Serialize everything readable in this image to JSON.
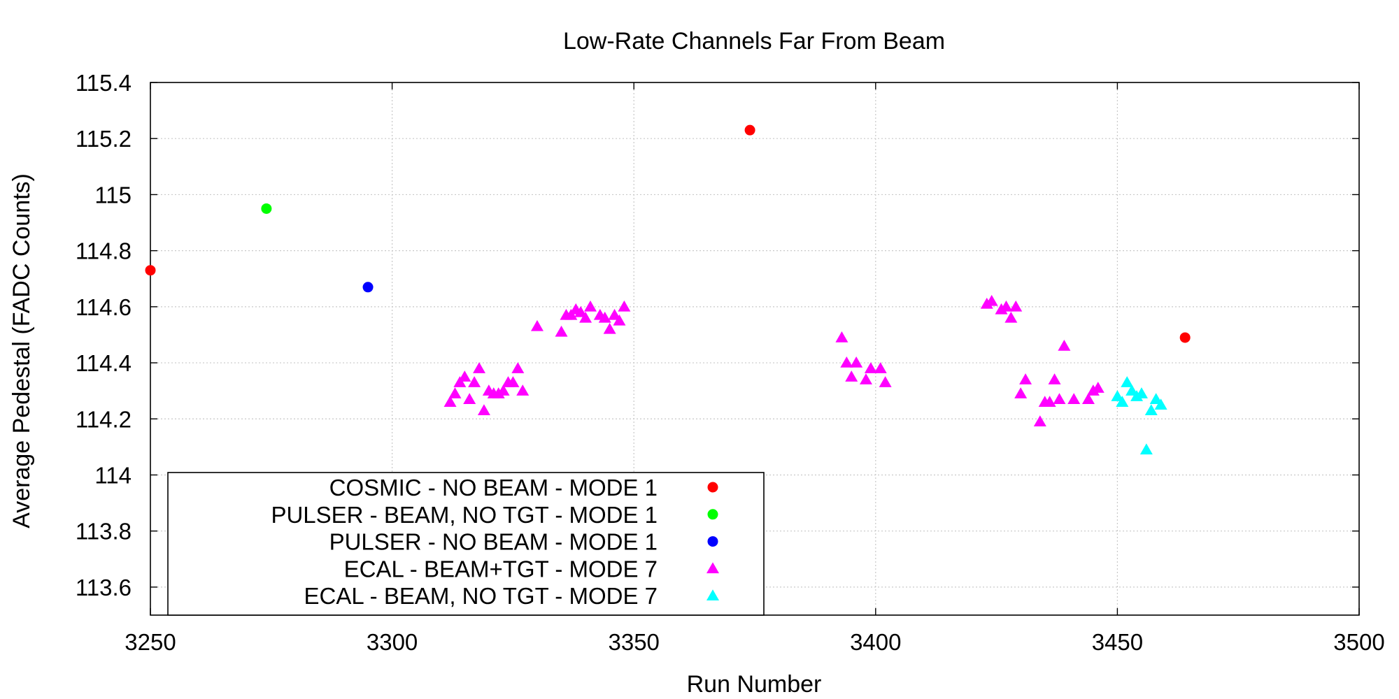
{
  "chart_data": {
    "type": "scatter",
    "title": "Low-Rate Channels Far From Beam",
    "xlabel": "Run Number",
    "ylabel": "Average Pedestal (FADC Counts)",
    "xlim": [
      3250,
      3500
    ],
    "ylim": [
      113.5,
      115.4
    ],
    "xticks": [
      3250,
      3300,
      3350,
      3400,
      3450,
      3500
    ],
    "yticks": [
      113.6,
      113.8,
      114,
      114.2,
      114.4,
      114.6,
      114.8,
      115,
      115.2,
      115.4
    ],
    "xtick_labels": [
      "3250",
      "3300",
      "3350",
      "3400",
      "3450",
      "3500"
    ],
    "ytick_labels": [
      "113.6",
      "113.8",
      "114",
      "114.2",
      "114.4",
      "114.6",
      "114.8",
      "115",
      "115.2",
      "115.4"
    ],
    "grid": true,
    "legend_position": "bottom-left",
    "series": [
      {
        "name": "COSMIC - NO BEAM - MODE 1",
        "marker": "circle",
        "color": "#ff0000",
        "points": [
          [
            3250,
            114.73
          ],
          [
            3374,
            115.23
          ],
          [
            3464,
            114.49
          ]
        ]
      },
      {
        "name": "PULSER - BEAM, NO TGT - MODE 1",
        "marker": "circle",
        "color": "#00ff00",
        "points": [
          [
            3274,
            114.95
          ]
        ]
      },
      {
        "name": "PULSER - NO BEAM - MODE 1",
        "marker": "circle",
        "color": "#0000ff",
        "points": [
          [
            3295,
            114.67
          ]
        ]
      },
      {
        "name": "ECAL - BEAM+TGT - MODE 7",
        "marker": "triangle",
        "color": "#ff00ff",
        "points": [
          [
            3312,
            114.26
          ],
          [
            3313,
            114.29
          ],
          [
            3314,
            114.33
          ],
          [
            3315,
            114.35
          ],
          [
            3316,
            114.27
          ],
          [
            3317,
            114.33
          ],
          [
            3318,
            114.38
          ],
          [
            3319,
            114.23
          ],
          [
            3320,
            114.3
          ],
          [
            3321,
            114.29
          ],
          [
            3322,
            114.29
          ],
          [
            3323,
            114.3
          ],
          [
            3324,
            114.33
          ],
          [
            3325,
            114.33
          ],
          [
            3326,
            114.38
          ],
          [
            3327,
            114.3
          ],
          [
            3330,
            114.53
          ],
          [
            3335,
            114.51
          ],
          [
            3336,
            114.57
          ],
          [
            3337,
            114.57
          ],
          [
            3338,
            114.59
          ],
          [
            3339,
            114.58
          ],
          [
            3340,
            114.56
          ],
          [
            3341,
            114.6
          ],
          [
            3343,
            114.57
          ],
          [
            3344,
            114.56
          ],
          [
            3345,
            114.52
          ],
          [
            3346,
            114.57
          ],
          [
            3347,
            114.55
          ],
          [
            3348,
            114.6
          ],
          [
            3393,
            114.49
          ],
          [
            3394,
            114.4
          ],
          [
            3395,
            114.35
          ],
          [
            3396,
            114.4
          ],
          [
            3398,
            114.34
          ],
          [
            3399,
            114.38
          ],
          [
            3401,
            114.38
          ],
          [
            3402,
            114.33
          ],
          [
            3423,
            114.61
          ],
          [
            3424,
            114.62
          ],
          [
            3426,
            114.59
          ],
          [
            3427,
            114.6
          ],
          [
            3428,
            114.56
          ],
          [
            3429,
            114.6
          ],
          [
            3430,
            114.29
          ],
          [
            3431,
            114.34
          ],
          [
            3434,
            114.19
          ],
          [
            3435,
            114.26
          ],
          [
            3436,
            114.26
          ],
          [
            3437,
            114.34
          ],
          [
            3438,
            114.27
          ],
          [
            3439,
            114.46
          ],
          [
            3441,
            114.27
          ],
          [
            3444,
            114.27
          ],
          [
            3445,
            114.3
          ],
          [
            3446,
            114.31
          ]
        ]
      },
      {
        "name": "ECAL - BEAM, NO TGT - MODE 7",
        "marker": "triangle",
        "color": "#00ffff",
        "points": [
          [
            3450,
            114.28
          ],
          [
            3451,
            114.26
          ],
          [
            3452,
            114.33
          ],
          [
            3453,
            114.3
          ],
          [
            3454,
            114.28
          ],
          [
            3455,
            114.29
          ],
          [
            3456,
            114.09
          ],
          [
            3457,
            114.23
          ],
          [
            3458,
            114.27
          ],
          [
            3459,
            114.25
          ]
        ]
      }
    ]
  }
}
